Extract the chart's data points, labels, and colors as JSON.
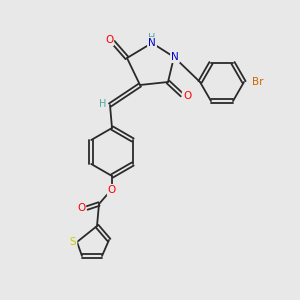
{
  "bg_color": "#e8e8e8",
  "bond_color": "#2a2a2a",
  "atom_colors": {
    "O": "#ff0000",
    "N": "#0000cd",
    "S": "#cccc00",
    "Br": "#cc6600",
    "H_teal": "#4da6a6",
    "C": "#2a2a2a"
  },
  "font_size": 7.5,
  "lw": 1.3
}
